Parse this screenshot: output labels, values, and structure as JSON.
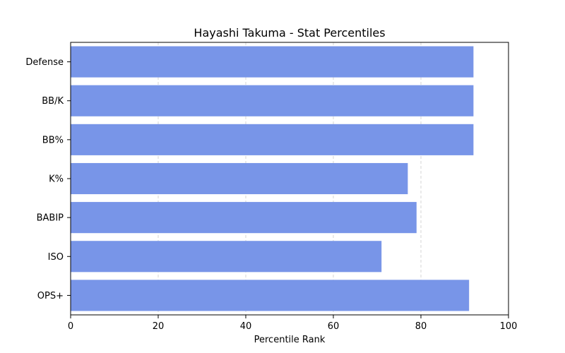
{
  "chart_data": {
    "type": "bar",
    "orientation": "horizontal",
    "title": "Hayashi Takuma - Stat Percentiles",
    "xlabel": "Percentile Rank",
    "ylabel": "",
    "xlim": [
      0,
      100
    ],
    "x_ticks": [
      0,
      20,
      40,
      60,
      80,
      100
    ],
    "grid": "vertical dashed",
    "categories": [
      "OPS+",
      "ISO",
      "BABIP",
      "K%",
      "BB%",
      "BB/K",
      "Defense"
    ],
    "values": [
      91,
      71,
      79,
      77,
      92,
      92,
      92
    ],
    "bar_color": "#7895e8"
  }
}
